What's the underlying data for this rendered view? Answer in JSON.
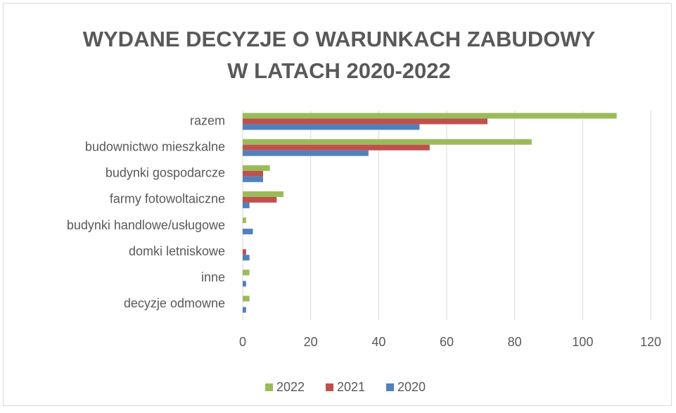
{
  "chart_data": {
    "type": "hbar",
    "title": [
      "WYDANE DECYZJE O WARUNKACH ZABUDOWY",
      "W LATACH 2020-2022"
    ],
    "categories": [
      "razem",
      "budownictwo mieszkalne",
      "budynki gospodarcze",
      "farmy fotowoltaiczne",
      "budynki handlowe/usługowe",
      "domki letniskowe",
      "inne",
      "decyzje odmowne"
    ],
    "series": [
      {
        "name": "2022",
        "color": "#9bbb59",
        "values": [
          110,
          85,
          8,
          12,
          1,
          0,
          2,
          2
        ]
      },
      {
        "name": "2021",
        "color": "#c0504d",
        "values": [
          72,
          55,
          6,
          10,
          0,
          1,
          0,
          0
        ]
      },
      {
        "name": "2020",
        "color": "#4f81bd",
        "values": [
          52,
          37,
          6,
          2,
          3,
          2,
          1,
          1
        ]
      }
    ],
    "xlim": [
      0,
      120
    ],
    "xticks": [
      0,
      20,
      40,
      60,
      80,
      100,
      120
    ],
    "grid": true,
    "legend": "bottom"
  }
}
